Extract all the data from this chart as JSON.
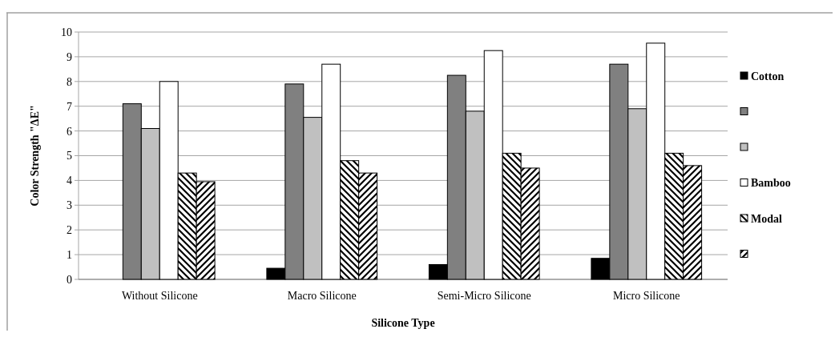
{
  "chart_data": {
    "type": "bar",
    "xlabel": "Silicone Type",
    "ylabel": "Color Strength \"ΔE\"",
    "categories": [
      "Without Silicone",
      "Macro Silicone",
      "Semi-Micro Silicone",
      "Micro Silicone"
    ],
    "series": [
      {
        "name": "Cotton",
        "color": "#000000",
        "values": [
          0,
          0.45,
          0.6,
          0.85
        ]
      },
      {
        "color": "#808080",
        "values": [
          7.1,
          7.9,
          8.25,
          8.7
        ]
      },
      {
        "color": "#c0c0c0",
        "values": [
          6.1,
          6.55,
          6.8,
          6.9
        ]
      },
      {
        "name": "Bamboo",
        "color": "#ffffff",
        "values": [
          8.0,
          8.7,
          9.25,
          9.55
        ]
      },
      {
        "name": "Modal",
        "color": "#000000",
        "values": [
          4.3,
          4.8,
          5.1,
          5.1
        ]
      },
      {
        "color": "#000000",
        "values": [
          3.95,
          4.3,
          4.5,
          4.6
        ]
      }
    ],
    "ylim": [
      0,
      10
    ],
    "yticks": [
      0,
      1,
      2,
      3,
      4,
      5,
      6,
      7,
      8,
      9,
      10
    ],
    "grid": "y",
    "legend": "right"
  }
}
